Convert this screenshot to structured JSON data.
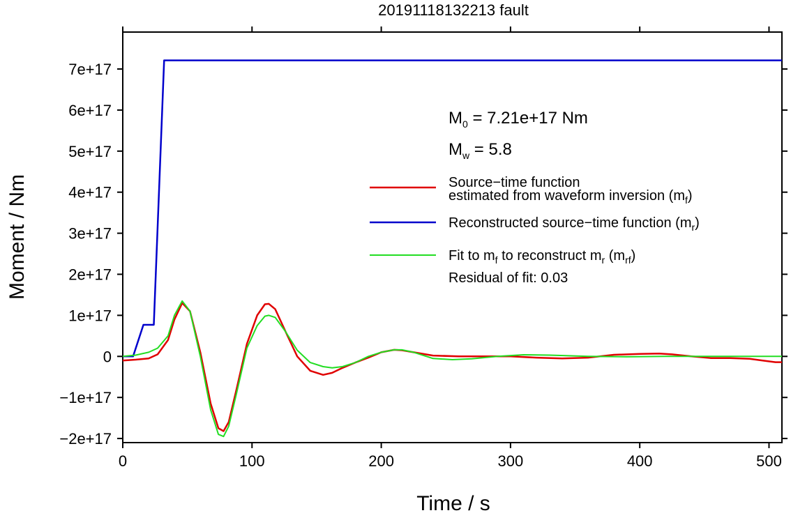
{
  "chart_data": {
    "type": "line",
    "title": "20191118132213 fault",
    "xlabel": "Time / s",
    "ylabel": "Moment / Nm",
    "xlim": [
      0,
      510
    ],
    "ylim": [
      -2.1e+17,
      7.9e+17
    ],
    "x_ticks": [
      0,
      100,
      200,
      300,
      400,
      500
    ],
    "x_tick_labels": [
      "0",
      "100",
      "200",
      "300",
      "400",
      "500"
    ],
    "y_ticks": [
      -2e+17,
      -1e+17,
      0,
      1e+17,
      2e+17,
      3e+17,
      4e+17,
      5e+17,
      6e+17,
      7e+17
    ],
    "y_tick_labels": [
      "−2e+17",
      "−1e+17",
      "0",
      "1e+17",
      "2e+17",
      "3e+17",
      "4e+17",
      "5e+17",
      "6e+17",
      "7e+17"
    ],
    "grid": false,
    "legend_position": "right",
    "annotations": {
      "m0_label": "M",
      "m0_sub": "0",
      "m0_value": " = 7.21e+17 Nm",
      "mw_label": "M",
      "mw_sub": "w",
      "mw_value": " = 5.8",
      "residual": "Residual of fit: 0.03"
    },
    "legend": {
      "red_line1": "Source−time function",
      "red_line2_main": "estimated from waveform inversion (m",
      "red_line2_sub": "f",
      "red_line2_end": ")",
      "blue_main": "Reconstructed source−time function (m",
      "blue_sub": "r",
      "blue_end": ")",
      "green_main1": "Fit to m",
      "green_sub1": "f",
      "green_main2": " to reconstruct m",
      "green_sub2": "r",
      "green_main3": " (m",
      "green_sub3": "rf",
      "green_end": ")"
    },
    "series": [
      {
        "color": "#0000cc",
        "x": [
          0,
          8,
          16,
          24,
          32,
          510
        ],
        "y": [
          0,
          0,
          7.7e+16,
          7.7e+16,
          7.21e+17,
          7.21e+17
        ]
      },
      {
        "color": "#e00000",
        "x": [
          0,
          10,
          20,
          27,
          35,
          40,
          46,
          52,
          60,
          68,
          74,
          78,
          82,
          88,
          96,
          104,
          110,
          113,
          118,
          126,
          135,
          145,
          155,
          162,
          170,
          180,
          190,
          200,
          210,
          216,
          225,
          240,
          260,
          280,
          300,
          320,
          340,
          360,
          380,
          400,
          415,
          425,
          440,
          455,
          470,
          485,
          495,
          505,
          510
        ],
        "y": [
          -1e+16,
          -8000000000000000.0,
          -5000000000000000.0,
          5000000000000000.0,
          4e+16,
          9e+16,
          1.3e+17,
          1.1e+17,
          1e+16,
          -1.15e+17,
          -1.75e+17,
          -1.82e+17,
          -1.6e+17,
          -8e+16,
          3e+16,
          1e+17,
          1.27e+17,
          1.28e+17,
          1.15e+17,
          6e+16,
          0,
          -3.5e+16,
          -4.5e+16,
          -4e+16,
          -2.8e+16,
          -1.5e+16,
          -3000000000000000.0,
          1e+16,
          1.6e+16,
          1.5e+16,
          1e+16,
          2000000000000000.0,
          0,
          0,
          0,
          -3000000000000000.0,
          -5000000000000000.0,
          -3000000000000000.0,
          4000000000000000.0,
          6000000000000000.0,
          7000000000000000.0,
          5000000000000000.0,
          0,
          -4000000000000000.0,
          -4000000000000000.0,
          -6000000000000000.0,
          -1e+16,
          -1.4e+16,
          -1.4e+16
        ]
      },
      {
        "color": "#22dd22",
        "x": [
          0,
          10,
          20,
          27,
          35,
          40,
          46,
          52,
          60,
          68,
          74,
          78,
          82,
          88,
          96,
          104,
          110,
          113,
          118,
          126,
          135,
          145,
          155,
          162,
          170,
          180,
          190,
          200,
          210,
          216,
          225,
          240,
          255,
          270,
          290,
          310,
          330,
          360,
          390,
          420,
          450,
          480,
          510
        ],
        "y": [
          0,
          3000000000000000.0,
          1e+16,
          2e+16,
          5e+16,
          1e+17,
          1.35e+17,
          1.1e+17,
          0,
          -1.3e+17,
          -1.9e+17,
          -1.95e+17,
          -1.7e+17,
          -9e+16,
          2e+16,
          7.5e+16,
          9.8e+16,
          1e+17,
          9.5e+16,
          6e+16,
          1.5e+16,
          -1.5e+16,
          -2.5e+16,
          -2.8e+16,
          -2.5e+16,
          -1.5e+16,
          0,
          1e+16,
          1.6e+16,
          1.6e+16,
          1e+16,
          -5000000000000000.0,
          -8000000000000000.0,
          -6000000000000000.0,
          0,
          4000000000000000.0,
          3000000000000000.0,
          0,
          -1000000000000000.0,
          0,
          0,
          0,
          0
        ]
      }
    ]
  }
}
